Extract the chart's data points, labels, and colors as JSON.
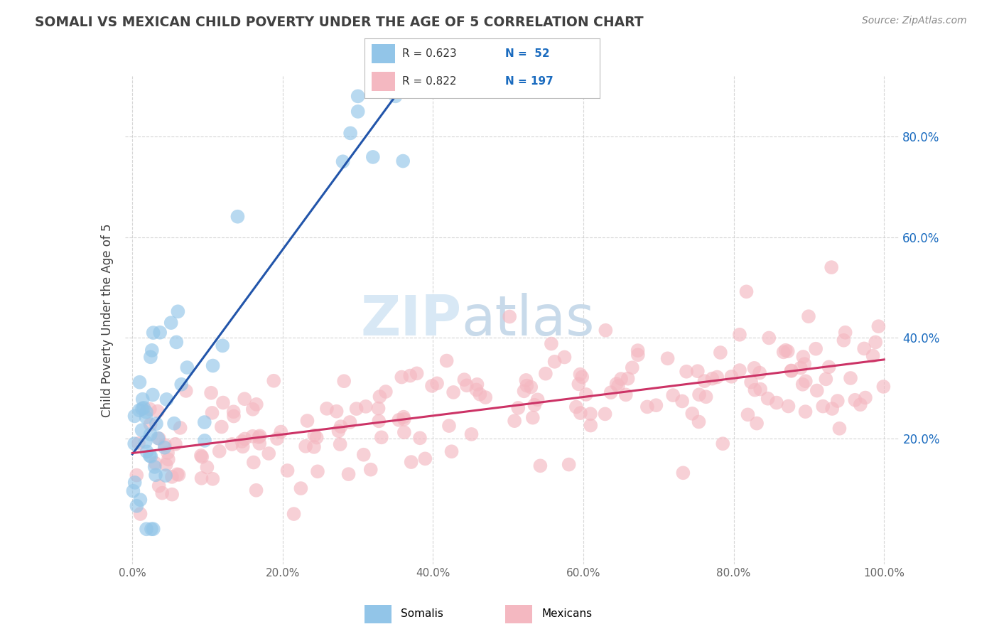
{
  "title": "SOMALI VS MEXICAN CHILD POVERTY UNDER THE AGE OF 5 CORRELATION CHART",
  "source": "Source: ZipAtlas.com",
  "ylabel": "Child Poverty Under the Age of 5",
  "xlim": [
    -0.01,
    1.02
  ],
  "ylim": [
    -0.05,
    0.92
  ],
  "x_ticks": [
    0.0,
    0.2,
    0.4,
    0.6,
    0.8,
    1.0
  ],
  "x_tick_labels": [
    "0.0%",
    "20.0%",
    "40.0%",
    "60.0%",
    "80.0%",
    "100.0%"
  ],
  "y_ticks_right": [
    0.2,
    0.4,
    0.6,
    0.8
  ],
  "y_tick_labels_right": [
    "20.0%",
    "40.0%",
    "60.0%",
    "80.0%"
  ],
  "somali_R": 0.623,
  "somali_N": 52,
  "mexican_R": 0.822,
  "mexican_N": 197,
  "somali_color": "#92c5e8",
  "mexican_color": "#f4b8c1",
  "somali_line_color": "#2255aa",
  "mexican_line_color": "#cc3366",
  "background_color": "#ffffff",
  "grid_color": "#cccccc",
  "watermark_zip": "ZIP",
  "watermark_atlas": "atlas",
  "watermark_color": "#d8e8f5",
  "title_color": "#404040",
  "legend_label_somali": "Somalis",
  "legend_label_mexican": "Mexicans",
  "source_color": "#888888",
  "legend_R_color": "#333333",
  "legend_N_color": "#1a6bbf"
}
